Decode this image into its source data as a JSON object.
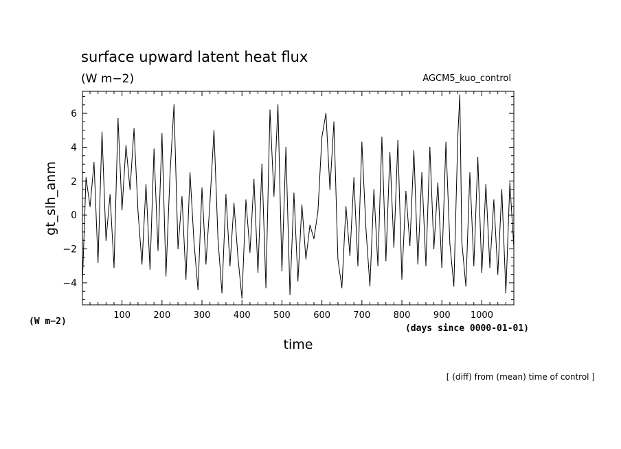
{
  "chart_data": {
    "type": "line",
    "title": "surface upward latent heat flux",
    "subtitle": "(W m−2)",
    "experiment": "AGCM5_kuo_control",
    "ylabel": "gt_slh_anm",
    "y_unit_label": "(W m−2)",
    "xlabel": "time",
    "x_unit_label": "(days since 0000-01-01)",
    "footnote": "[ (diff) from (mean) time of control ]",
    "xlim": [
      1,
      1080
    ],
    "ylim": [
      -5.3,
      7.3
    ],
    "x_ticks": [
      100,
      200,
      300,
      400,
      500,
      600,
      700,
      800,
      900,
      1000
    ],
    "y_ticks": [
      -4,
      -2,
      0,
      2,
      4,
      6
    ],
    "line_color": "#000000",
    "series": [
      {
        "x": [
          1,
          10,
          20,
          30,
          40,
          50,
          60,
          70,
          80,
          90,
          100,
          110,
          120,
          130,
          140,
          150,
          160,
          170,
          180,
          190,
          200,
          210,
          220,
          230,
          240,
          250,
          260,
          270,
          280,
          290,
          300,
          310,
          320,
          330,
          340,
          350,
          360,
          370,
          380,
          390,
          400,
          410,
          420,
          430,
          440,
          450,
          460,
          470,
          480,
          490,
          500,
          510,
          520,
          530,
          540,
          550,
          560,
          570,
          580,
          590,
          600,
          610,
          620,
          630,
          640,
          650,
          660,
          670,
          680,
          690,
          700,
          710,
          720,
          730,
          740,
          750,
          760,
          770,
          780,
          790,
          800,
          810,
          820,
          830,
          840,
          850,
          860,
          870,
          880,
          890,
          900,
          910,
          920,
          930,
          940,
          945,
          950,
          960,
          970,
          980,
          990,
          1000,
          1010,
          1020,
          1030,
          1040,
          1050,
          1060,
          1070,
          1080
        ],
        "values": [
          -4.0,
          2.2,
          0.5,
          3.1,
          -2.8,
          4.9,
          -1.5,
          1.2,
          -3.1,
          5.7,
          0.3,
          4.1,
          1.5,
          5.1,
          0.2,
          -2.9,
          1.8,
          -3.2,
          3.9,
          -2.1,
          4.8,
          -3.6,
          2.4,
          6.5,
          -2.0,
          1.1,
          -3.8,
          2.5,
          -1.6,
          -4.4,
          1.6,
          -2.9,
          0.8,
          5.0,
          -1.4,
          -4.6,
          1.2,
          -3.0,
          0.7,
          -2.5,
          -4.9,
          0.9,
          -2.2,
          2.1,
          -3.4,
          3.0,
          -4.3,
          6.2,
          1.1,
          6.5,
          -3.3,
          4.0,
          -4.7,
          1.3,
          -3.9,
          0.6,
          -2.6,
          -0.6,
          -1.4,
          0.2,
          4.6,
          6.0,
          1.5,
          5.5,
          -2.6,
          -4.3,
          0.5,
          -2.4,
          2.2,
          -3.0,
          4.3,
          -0.8,
          -4.2,
          1.5,
          -3.0,
          4.6,
          -2.7,
          3.7,
          -1.9,
          4.4,
          -3.8,
          1.4,
          -1.8,
          3.8,
          -2.9,
          2.5,
          -3.0,
          4.0,
          -2.0,
          1.9,
          -3.1,
          4.3,
          -1.7,
          -4.2,
          4.7,
          7.1,
          -1.6,
          -4.2,
          2.5,
          -3.0,
          3.4,
          -3.4,
          1.8,
          -3.1,
          0.9,
          -3.5,
          1.5,
          -4.6,
          1.9,
          -1.9
        ]
      }
    ]
  }
}
